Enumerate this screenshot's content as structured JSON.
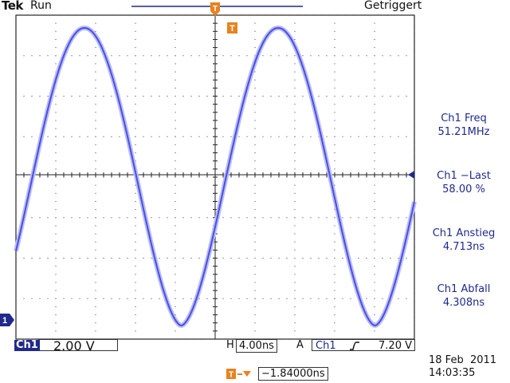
{
  "header": {
    "brand": "Tek",
    "run_state": "Run",
    "trigger_status": "Getriggert"
  },
  "measurements": [
    {
      "label": "Ch1 Freq",
      "value": "51.21MHz"
    },
    {
      "label": "Ch1 −Last",
      "value": "58.00 %"
    },
    {
      "label": "Ch1 Anstieg",
      "value": "4.713ns"
    },
    {
      "label": "Ch1 Abfall",
      "value": "4.308ns"
    }
  ],
  "footer": {
    "channel_tag": "Ch1",
    "channel_scale": "2.00 V",
    "horizontal_label": "H",
    "horizontal_scale": "4.00ns",
    "acq_mode": "A",
    "trigger_source": "Ch1",
    "trigger_level": "7.20 V",
    "date": "18 Feb  2011",
    "time": "14:03:35",
    "position_value": "−1.84000ns"
  },
  "markers": {
    "trigger_marker": "T",
    "channel_ground_marker": "1"
  },
  "colors": {
    "trace": "#4b4fe0",
    "marker": "#e8821e",
    "text_blue": "#1f2a8a",
    "grid": "#222222"
  },
  "icons": {
    "trigger_marker": "orange-T-flag-icon",
    "ground_marker": "channel-1-marker-icon",
    "slope": "rising-edge-icon",
    "position": "orange-T-arrow-icon"
  }
}
